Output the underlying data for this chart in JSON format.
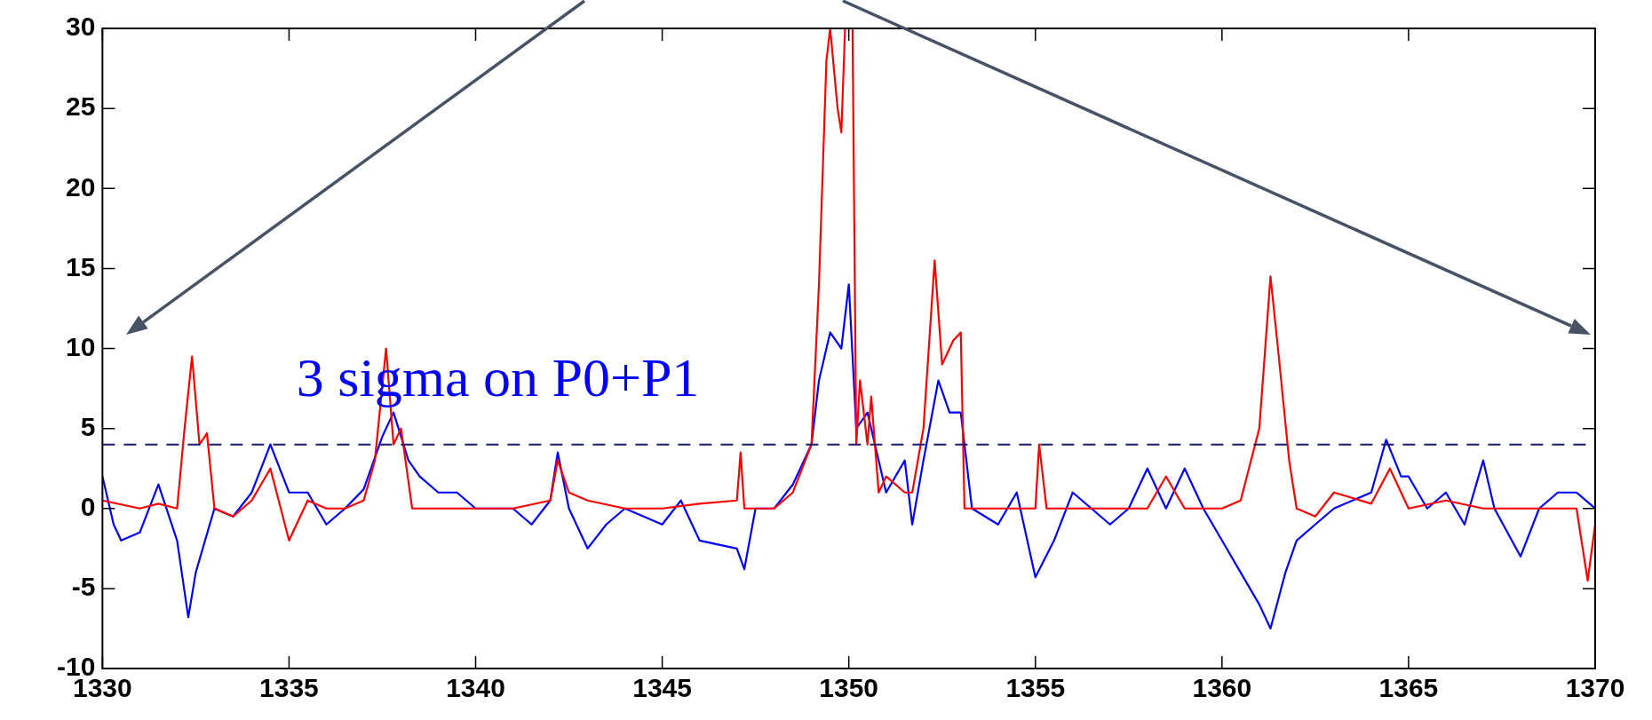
{
  "chart_data": {
    "type": "line",
    "xlim": [
      1330,
      1370
    ],
    "ylim": [
      -10,
      30
    ],
    "xticks": [
      1330,
      1335,
      1340,
      1345,
      1350,
      1355,
      1360,
      1365,
      1370
    ],
    "yticks": [
      -10,
      -5,
      0,
      5,
      10,
      15,
      20,
      25,
      30
    ],
    "grid": false,
    "legend": false,
    "marker": "none",
    "line_style": "solid",
    "ref_lines": [
      {
        "axis": "y",
        "value": 4,
        "label": "3 sigma on P0+P1",
        "color": "#1a1a6e",
        "line_style": "dashed"
      }
    ],
    "series": [
      {
        "color": "#ff0000",
        "x": [
          1330,
          1331,
          1331.5,
          1332,
          1332.2,
          1332.4,
          1332.6,
          1332.8,
          1333,
          1333.5,
          1334,
          1334.5,
          1335,
          1335.5,
          1336,
          1336.5,
          1337,
          1337.3,
          1337.6,
          1337.8,
          1338,
          1338.3,
          1339,
          1340,
          1341,
          1342,
          1342.2,
          1342.5,
          1343,
          1344,
          1345,
          1346,
          1347,
          1347.1,
          1347.2,
          1348,
          1348.5,
          1349,
          1349.2,
          1349.4,
          1349.5,
          1349.7,
          1349.8,
          1349.9,
          1350.1,
          1350.2,
          1350.3,
          1350.5,
          1350.6,
          1350.8,
          1351,
          1351.5,
          1351.7,
          1352,
          1352.3,
          1352.5,
          1352.8,
          1353,
          1353.1,
          1354,
          1355,
          1355.1,
          1355.3,
          1356,
          1357,
          1358,
          1358.5,
          1359,
          1359.5,
          1360,
          1360.5,
          1361,
          1361.3,
          1361.5,
          1361.8,
          1362,
          1362.5,
          1363,
          1364,
          1364.5,
          1365,
          1366,
          1367,
          1368,
          1369,
          1369.5,
          1369.8,
          1370
        ],
        "values": [
          0.5,
          0,
          0.3,
          0,
          5,
          9.5,
          4,
          4.7,
          0,
          -0.5,
          0.5,
          2.5,
          -2,
          0.5,
          0,
          0,
          0.5,
          3,
          10,
          4,
          5,
          0,
          0,
          0,
          0,
          0.5,
          3,
          1,
          0.5,
          0,
          0,
          0.3,
          0.5,
          3.5,
          0,
          0,
          1,
          4,
          14,
          28,
          30,
          25,
          23.5,
          30,
          30,
          4,
          8,
          4,
          7,
          1,
          2,
          1,
          1,
          5,
          15.5,
          9,
          10.5,
          11,
          0,
          0,
          0,
          4,
          0,
          0,
          0,
          0,
          2,
          0,
          0,
          0,
          0.5,
          5,
          14.5,
          10,
          3,
          0,
          -0.5,
          1,
          0.3,
          2.5,
          0,
          0.5,
          0,
          0,
          0,
          0,
          -4.5,
          -1
        ]
      },
      {
        "color": "#0000ff",
        "x": [
          1330,
          1330.3,
          1330.5,
          1331,
          1331.5,
          1332,
          1332.3,
          1332.5,
          1333,
          1333.5,
          1334,
          1334.5,
          1335,
          1335.5,
          1336,
          1336.5,
          1337,
          1337.5,
          1337.8,
          1338.2,
          1338.5,
          1339,
          1339.5,
          1340,
          1341,
          1341.5,
          1342,
          1342.2,
          1342.5,
          1343,
          1343.5,
          1344,
          1345,
          1345.5,
          1346,
          1347,
          1347.2,
          1347.5,
          1348,
          1348.5,
          1349,
          1349.2,
          1349.5,
          1349.8,
          1350,
          1350.2,
          1350.5,
          1351,
          1351.5,
          1351.7,
          1352,
          1352.4,
          1352.7,
          1353,
          1353.3,
          1354,
          1354.5,
          1355,
          1355.5,
          1356,
          1356.5,
          1357,
          1357.5,
          1358,
          1358.5,
          1359,
          1359.5,
          1360,
          1360.5,
          1361,
          1361.3,
          1361.7,
          1362,
          1362.5,
          1363,
          1364,
          1364.4,
          1364.8,
          1365,
          1365.5,
          1366,
          1366.5,
          1367,
          1367.3,
          1368,
          1368.5,
          1369,
          1369.5,
          1370
        ],
        "values": [
          2,
          -1,
          -2,
          -1.5,
          1.5,
          -2,
          -6.8,
          -4,
          0,
          -0.5,
          1,
          4,
          1,
          1,
          -1,
          0,
          1.2,
          4.5,
          6,
          3,
          2,
          1,
          1,
          0,
          0,
          -1,
          0.5,
          3.5,
          0,
          -2.5,
          -1,
          0,
          -1,
          0.5,
          -2,
          -2.5,
          -3.8,
          0,
          0,
          1.5,
          4,
          8,
          11,
          10,
          14,
          5,
          6,
          1,
          3,
          -1,
          3,
          8,
          6,
          6,
          0,
          -1,
          1,
          -4.3,
          -2,
          1,
          0,
          -1,
          0,
          2.5,
          0,
          2.5,
          0,
          -2,
          -4,
          -6,
          -7.5,
          -4,
          -2,
          -1,
          0,
          1,
          4.3,
          2,
          2,
          0,
          1,
          -1,
          3,
          0,
          -3,
          0,
          1,
          1,
          0
        ]
      }
    ]
  }
}
